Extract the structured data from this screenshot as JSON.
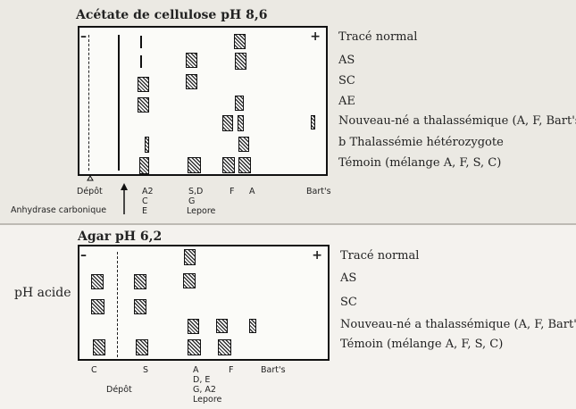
{
  "panel1": {
    "title": "Acétate de cellulose pH 8,6",
    "minus": "–",
    "plus": "+",
    "rows": [
      "Tracé normal",
      "AS",
      "SC",
      "AE",
      "Nouveau-né a thalassémique (A, F, Bart's)",
      "b Thalassémie hétérozygote",
      "Témoin (mélange A, F, S, C)"
    ],
    "axis": {
      "depot": "Dépôt",
      "a2": "A2",
      "c": "C",
      "e": "E",
      "sd": "S,D",
      "g": "G",
      "lepore": "Lepore",
      "f": "F",
      "a": "A",
      "barts": "Bart's",
      "anhydrase": "Anhydrase carbonique"
    }
  },
  "panel2": {
    "title": "Agar pH 6,2",
    "minus": "–",
    "plus": "+",
    "side_label": "pH acide",
    "rows": [
      "Tracé normal",
      "AS",
      "SC",
      "Nouveau-né a thalassémique (A, F, Bart's)",
      "Témoin (mélange A, F, S, C)"
    ],
    "axis": {
      "c": "C",
      "s": "S",
      "a": "A",
      "de": "D, E",
      "ga2": "G, A2",
      "lepore": "Lepore",
      "f": "F",
      "barts": "Bart's",
      "depot": "Dépôt"
    }
  },
  "colors": {
    "ink": "#111111",
    "paper": "#fbfbf8",
    "panel_bg": "#ebe9e3"
  }
}
